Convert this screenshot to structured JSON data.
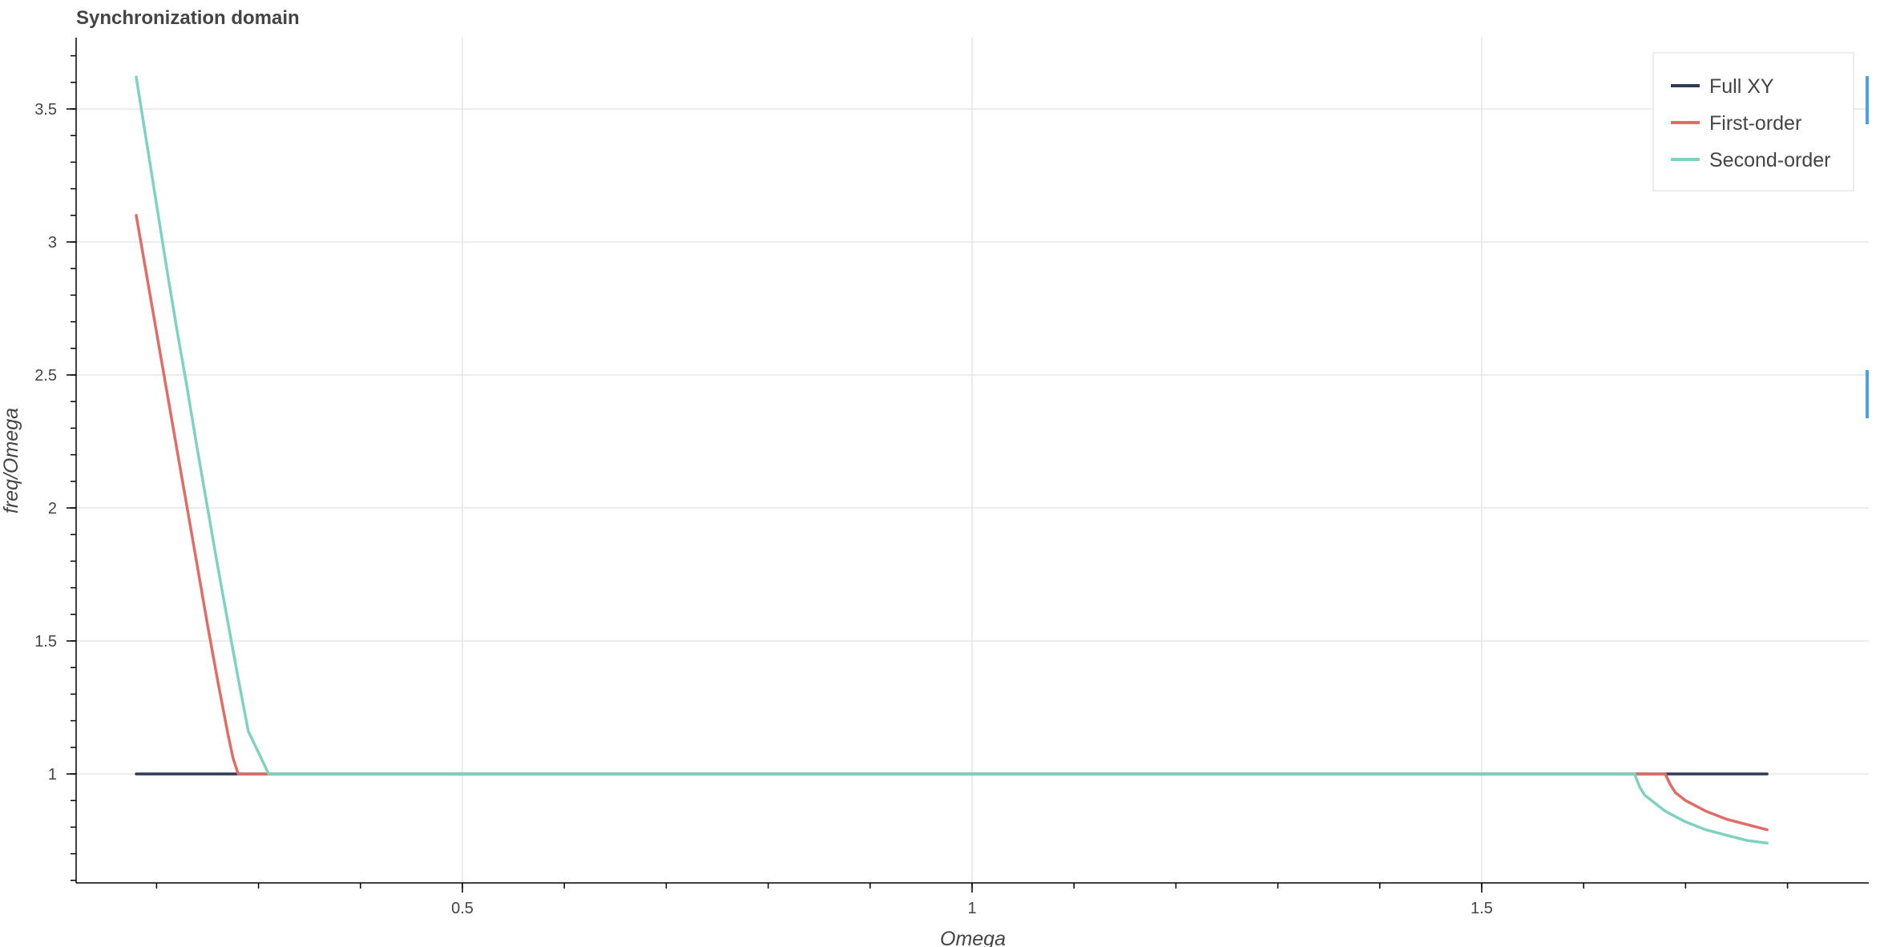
{
  "chart_data": {
    "type": "line",
    "title": "Synchronization domain",
    "xlabel": "Omega",
    "ylabel": "freq/Omega",
    "xlim": [
      0.1,
      1.98
    ],
    "ylim": [
      0.6,
      3.75
    ],
    "xticks": [
      {
        "value": 0.5,
        "label": "0.5"
      },
      {
        "value": 1.0,
        "label": "1"
      },
      {
        "value": 1.5,
        "label": "1.5"
      }
    ],
    "yticks": [
      {
        "value": 1.0,
        "label": "1"
      },
      {
        "value": 1.5,
        "label": "1.5"
      },
      {
        "value": 2.0,
        "label": "2"
      },
      {
        "value": 2.5,
        "label": "2.5"
      },
      {
        "value": 3.0,
        "label": "3"
      },
      {
        "value": 3.5,
        "label": "3.5"
      }
    ],
    "x_minor_step": 0.1,
    "y_minor_step": 0.1,
    "grid": true,
    "legend_position": "top-right",
    "series": [
      {
        "name": "Full XY",
        "color": "#2f3b52",
        "x": [
          0.18,
          0.3,
          0.5,
          0.8,
          1.0,
          1.3,
          1.5,
          1.7,
          1.78
        ],
        "y": [
          1.0,
          1.0,
          1.0,
          1.0,
          1.0,
          1.0,
          1.0,
          1.0,
          1.0
        ]
      },
      {
        "name": "First-order",
        "color": "#e06c65",
        "x": [
          0.18,
          0.19,
          0.2,
          0.21,
          0.22,
          0.23,
          0.24,
          0.25,
          0.26,
          0.27,
          0.275,
          0.28,
          0.285,
          0.2875,
          0.29,
          0.3,
          0.315,
          0.33,
          0.4,
          0.6,
          0.8,
          1.0,
          1.2,
          1.4,
          1.6,
          1.68,
          1.685,
          1.69,
          1.7,
          1.72,
          1.74,
          1.76,
          1.78
        ],
        "y": [
          3.1,
          2.88,
          2.66,
          2.44,
          2.22,
          2.0,
          1.78,
          1.56,
          1.35,
          1.15,
          1.06,
          1.0,
          1.0,
          1.0,
          1.0,
          1.0,
          1.0,
          1.0,
          1.0,
          1.0,
          1.0,
          1.0,
          1.0,
          1.0,
          1.0,
          1.0,
          0.96,
          0.93,
          0.9,
          0.86,
          0.83,
          0.81,
          0.79
        ]
      },
      {
        "name": "Second-order",
        "color": "#7dd3c0",
        "x": [
          0.18,
          0.19,
          0.2,
          0.21,
          0.22,
          0.23,
          0.24,
          0.25,
          0.26,
          0.27,
          0.28,
          0.29,
          0.3,
          0.31,
          0.315,
          0.32,
          0.4,
          0.6,
          0.8,
          1.0,
          1.2,
          1.4,
          1.6,
          1.65,
          1.655,
          1.66,
          1.67,
          1.68,
          1.7,
          1.72,
          1.74,
          1.76,
          1.78
        ],
        "y": [
          3.62,
          3.38,
          3.14,
          2.9,
          2.67,
          2.45,
          2.22,
          2.0,
          1.78,
          1.57,
          1.36,
          1.16,
          1.08,
          1.0,
          1.0,
          1.0,
          1.0,
          1.0,
          1.0,
          1.0,
          1.0,
          1.0,
          1.0,
          1.0,
          0.95,
          0.92,
          0.89,
          0.86,
          0.82,
          0.79,
          0.77,
          0.75,
          0.74
        ]
      }
    ]
  }
}
